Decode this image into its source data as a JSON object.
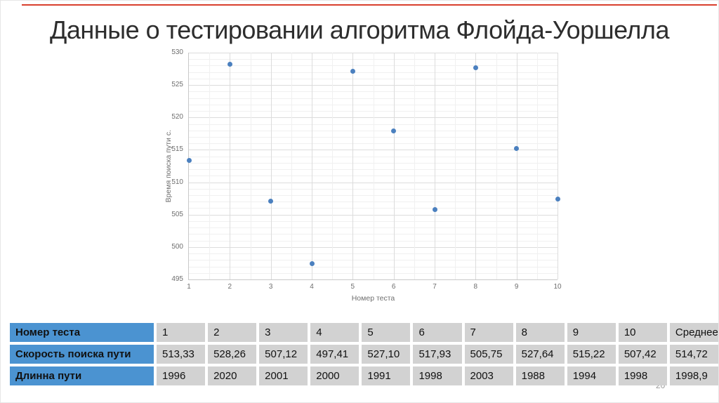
{
  "slide": {
    "title": "Данные о тестировании алгоритма Флойда-Уоршелла",
    "page_number": "20",
    "accent_line_color": "#d9402e"
  },
  "chart_data": {
    "type": "scatter",
    "x": [
      1,
      2,
      3,
      4,
      5,
      6,
      7,
      8,
      9,
      10
    ],
    "y": [
      513.33,
      528.26,
      507.12,
      497.41,
      527.1,
      517.93,
      505.75,
      527.64,
      515.22,
      507.42
    ],
    "xlabel": "Номер теста",
    "ylabel": "Время поиска пути с.",
    "xlim": [
      1,
      10
    ],
    "ylim": [
      495,
      530
    ],
    "y_major_step": 5,
    "y_minor_step": 1,
    "x_major_step": 1,
    "x_minor_step": 0.5,
    "grid": "on",
    "legend": "none",
    "point_color": "#4b80bf"
  },
  "table": {
    "rows": [
      {
        "label": "Номер теста",
        "values": [
          "1",
          "2",
          "3",
          "4",
          "5",
          "6",
          "7",
          "8",
          "9",
          "10",
          "Среднее"
        ]
      },
      {
        "label": "Скорость поиска пути",
        "values": [
          "513,33",
          "528,26",
          "507,12",
          "497,41",
          "527,10",
          "517,93",
          "505,75",
          "527,64",
          "515,22",
          "507,42",
          "514,72"
        ]
      },
      {
        "label": "Длинна пути",
        "values": [
          "1996",
          "2020",
          "2001",
          "2000",
          "1991",
          "1998",
          "2003",
          "1988",
          "1994",
          "1998",
          "1998,9"
        ]
      }
    ],
    "header_bg": "#4b93d1",
    "cell_bg": "#d2d2d2"
  }
}
